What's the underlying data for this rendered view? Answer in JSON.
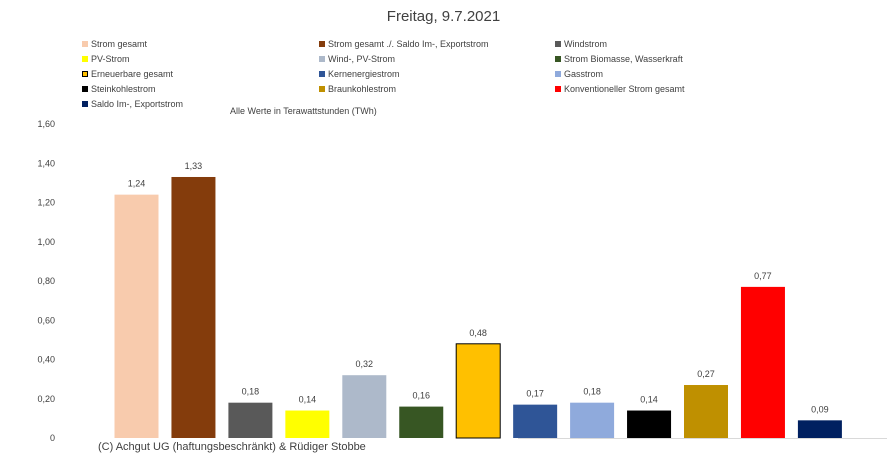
{
  "chart_data": {
    "type": "bar",
    "title": "Freitag, 9.7.2021",
    "subtitle": "Alle Werte in Terawattstunden (TWh)",
    "footer": "(C) Achgut UG (haftungsbeschränkt) & Rüdiger Stobbe",
    "ylim": [
      0,
      1.6
    ],
    "y_ticks": [
      "0",
      "0,20",
      "0,40",
      "0,60",
      "0,80",
      "1,00",
      "1,20",
      "1,40",
      "1,60"
    ],
    "grid": false,
    "legend_position": "top",
    "categories": [
      "Strom gesamt",
      "Strom gesamt ./. Saldo Im-, Exportstrom",
      "Windstrom",
      "PV-Strom",
      "Wind-, PV-Strom",
      "Strom Biomasse, Wasserkraft",
      "Erneuerbare gesamt",
      "Kernenergiestrom",
      "Gasstrom",
      "Steinkohlestrom",
      "Braunkohlestrom",
      "Konventioneller Strom gesamt",
      "Saldo Im-, Exportstrom"
    ],
    "values": [
      1.24,
      1.33,
      0.18,
      0.14,
      0.32,
      0.16,
      0.48,
      0.17,
      0.18,
      0.14,
      0.27,
      0.77,
      0.09
    ],
    "value_labels": [
      "1,24",
      "1,33",
      "0,18",
      "0,14",
      "0,32",
      "0,16",
      "0,48",
      "0,17",
      "0,18",
      "0,14",
      "0,27",
      "0,77",
      "0,09"
    ],
    "colors": [
      "#F8CBAD",
      "#843C0C",
      "#595959",
      "#FFFF00",
      "#ADB9CA",
      "#375623",
      "#FFC000",
      "#2F5597",
      "#8FAADC",
      "#000000",
      "#BF9000",
      "#FF0000",
      "#002060"
    ]
  }
}
